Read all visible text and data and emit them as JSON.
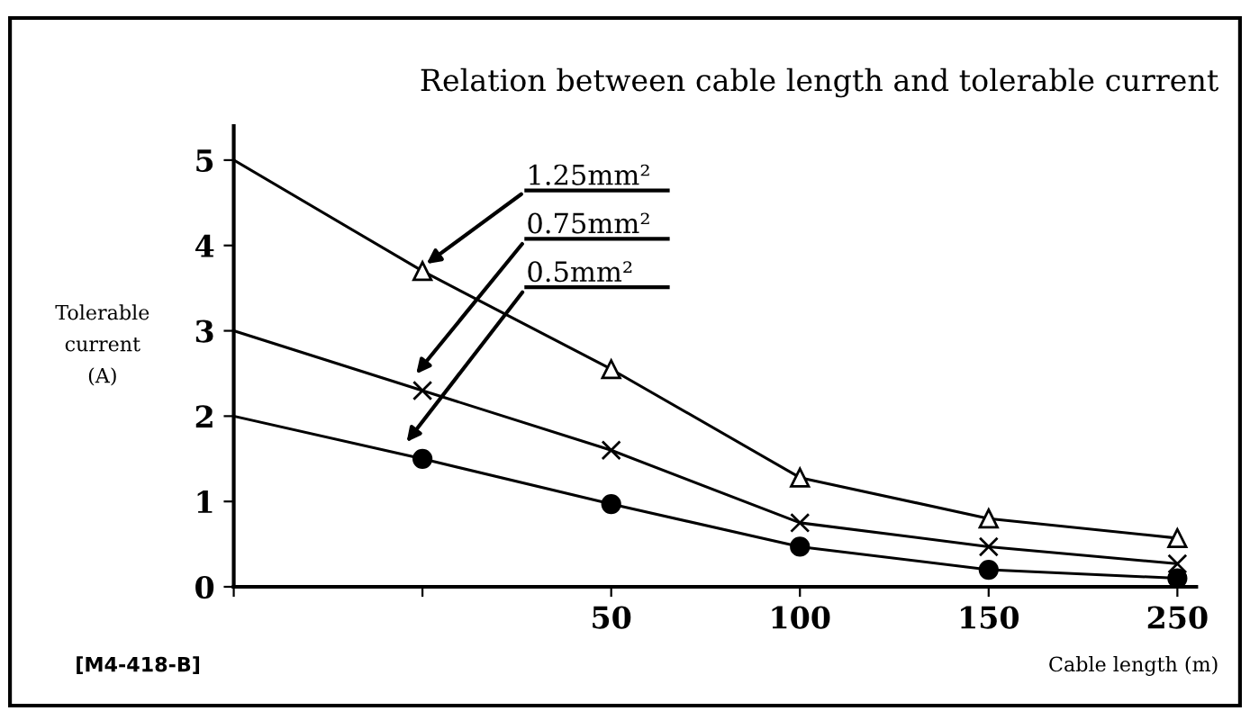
{
  "chart_data": {
    "type": "line",
    "title": "Relation between cable length and tolerable current",
    "xlabel": "Cable length (m)",
    "ylabel": "Tolerable\ncurrent\n(A)",
    "categories": [
      null,
      null,
      "50",
      "100",
      "150",
      "250"
    ],
    "series": [
      {
        "name": "1.25mm²",
        "color": "#000000",
        "marker": "triangle",
        "values": [
          5.0,
          3.7,
          2.55,
          1.28,
          0.8,
          0.57
        ]
      },
      {
        "name": "0.75mm²",
        "color": "#000000",
        "marker": "cross",
        "values": [
          3.0,
          2.3,
          1.6,
          0.75,
          0.47,
          0.27
        ]
      },
      {
        "name": "0.5mm²",
        "color": "#000000",
        "marker": "circle",
        "values": [
          2.0,
          1.5,
          0.97,
          0.47,
          0.2,
          0.1
        ]
      }
    ],
    "ylim": [
      0,
      5.4
    ],
    "yticks": [
      0,
      1,
      2,
      3,
      4,
      5
    ],
    "annotations": [
      "[M4-418-B]"
    ],
    "legend": false,
    "grid": false,
    "line_style": "solid"
  }
}
